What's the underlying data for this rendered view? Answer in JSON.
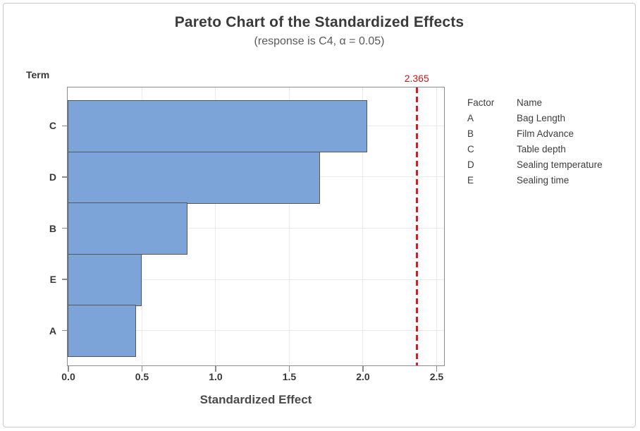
{
  "title": "Pareto Chart of the Standardized Effects",
  "subtitle": "(response is C4, α = 0.05)",
  "y_axis_title": "Term",
  "x_axis_title": "Standardized Effect",
  "chart_data": {
    "type": "bar",
    "orientation": "horizontal",
    "title": "Pareto Chart of the Standardized Effects",
    "subtitle": "(response is C4, α = 0.05)",
    "xlabel": "Standardized Effect",
    "ylabel": "Term",
    "categories": [
      "C",
      "D",
      "B",
      "E",
      "A"
    ],
    "values": [
      2.03,
      1.71,
      0.81,
      0.5,
      0.46
    ],
    "x_ticks": [
      "0.0",
      "0.5",
      "1.0",
      "1.5",
      "2.0",
      "2.5"
    ],
    "xlim": [
      0,
      2.56
    ],
    "grid": true,
    "reference_line": {
      "value": 2.365,
      "label": "2.365"
    },
    "legend_position": "right"
  },
  "legend": {
    "header": {
      "factor": "Factor",
      "name": "Name"
    },
    "rows": [
      {
        "factor": "A",
        "name": "Bag Length"
      },
      {
        "factor": "B",
        "name": "Film Advance"
      },
      {
        "factor": "C",
        "name": "Table depth"
      },
      {
        "factor": "D",
        "name": "Sealing temperature"
      },
      {
        "factor": "E",
        "name": "Sealing time"
      }
    ]
  },
  "colors": {
    "bar_fill": "#7ca4d8",
    "bar_border": "#53585e",
    "reference_line": "#cb2026",
    "grid": "#eaeaea",
    "frame": "#8c8c8c",
    "text": "#3d3d3d"
  }
}
